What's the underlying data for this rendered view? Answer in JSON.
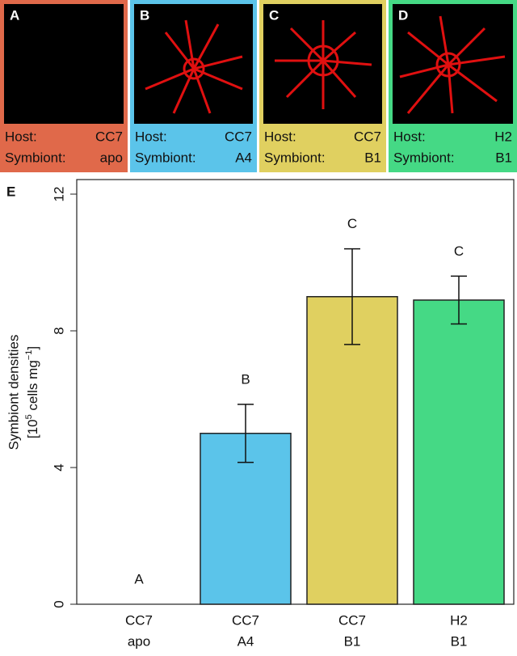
{
  "panels": [
    {
      "label": "A",
      "color": "#e0694a",
      "host_label": "Host:",
      "host": "CC7",
      "symbiont_label": "Symbiont:",
      "symbiont": "apo"
    },
    {
      "label": "B",
      "color": "#5bc4ea",
      "host_label": "Host:",
      "host": "CC7",
      "symbiont_label": "Symbiont:",
      "symbiont": "A4"
    },
    {
      "label": "C",
      "color": "#e0d060",
      "host_label": "Host:",
      "host": "CC7",
      "symbiont_label": "Symbiont:",
      "symbiont": "B1"
    },
    {
      "label": "D",
      "color": "#45d985",
      "host_label": "Host:",
      "host": "H2",
      "symbiont_label": "Symbiont:",
      "symbiont": "B1"
    }
  ],
  "chart_data": {
    "type": "bar",
    "panel_label": "E",
    "y_label": "Symbiont densities",
    "y_label_units": [
      "[10",
      "5",
      " cells mg",
      "−1",
      "]"
    ],
    "categories": [
      [
        "CC7",
        "apo"
      ],
      [
        "CC7",
        "A4"
      ],
      [
        "CC7",
        "B1"
      ],
      [
        "H2",
        "B1"
      ]
    ],
    "values": [
      0,
      5.0,
      9.0,
      8.9
    ],
    "errors": [
      0,
      0.85,
      1.4,
      0.7
    ],
    "annotations": [
      "A",
      "B",
      "C",
      "C"
    ],
    "colors": [
      "#e0694a",
      "#5bc4ea",
      "#e0d060",
      "#45d985"
    ],
    "ylim": [
      0,
      12
    ],
    "yticks": [
      0,
      4,
      8,
      12
    ]
  }
}
